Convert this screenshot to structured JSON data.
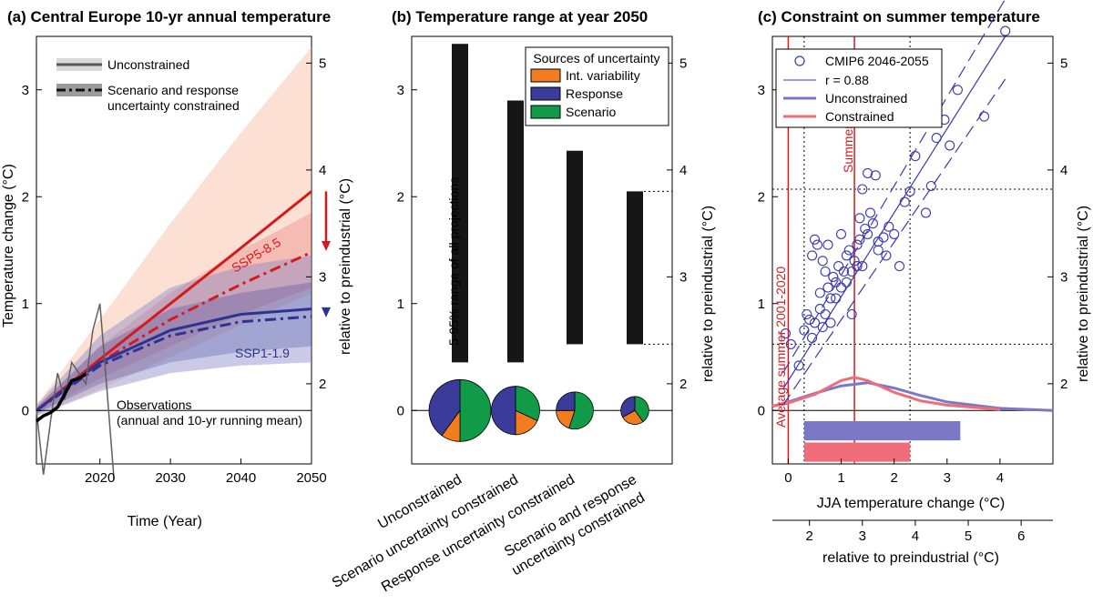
{
  "colors": {
    "red": "#d7191c",
    "red_light": "#f4a582",
    "blue": "#2c3393",
    "blue_light": "#8a8ac8",
    "orange": "#f47c20",
    "response": "#3b3b9c",
    "green": "#119a48",
    "bar": "#161616",
    "obs": "#606060",
    "scatter": "#3a3ab0",
    "pdf_blue": "#7b79c6",
    "pdf_red": "#ee6d78"
  },
  "chart_data": [
    {
      "panel": "a",
      "type": "line",
      "title": "(a) Central Europe 10-yr annual temperature",
      "xlabel": "Time (Year)",
      "ylabel": "Temperature change (°C)",
      "y2label": "relative to preindustrial (°C)",
      "xlim": [
        2011,
        2050
      ],
      "ylim": [
        -0.5,
        3.5
      ],
      "xticks": [
        2020,
        2030,
        2040,
        2050
      ],
      "yticks": [
        0,
        1,
        2,
        3
      ],
      "y2ticks": [
        2,
        3,
        4,
        5
      ],
      "y2_offset": 1.75,
      "legend": {
        "unconstrained": "Unconstrained",
        "constrained_line1": "Scenario and response",
        "constrained_line2": "uncertainty constrained"
      },
      "labels": {
        "ssp585": "SSP5-8.5",
        "ssp119": "SSP1-1.9",
        "obs_line1": "Observations",
        "obs_line2": "(annual and 10-yr running mean)"
      },
      "series": [
        {
          "name": "SSP5-8.5 unconstrained",
          "x": [
            2011,
            2020,
            2030,
            2040,
            2050
          ],
          "values": [
            0.0,
            0.48,
            1.0,
            1.52,
            2.05
          ]
        },
        {
          "name": "SSP5-8.5 constrained",
          "x": [
            2011,
            2020,
            2030,
            2040,
            2050
          ],
          "values": [
            0.0,
            0.45,
            0.85,
            1.18,
            1.48
          ]
        },
        {
          "name": "SSP1-1.9 unconstrained",
          "x": [
            2011,
            2020,
            2030,
            2040,
            2050
          ],
          "values": [
            0.0,
            0.45,
            0.75,
            0.9,
            0.95
          ]
        },
        {
          "name": "SSP1-1.9 constrained",
          "x": [
            2011,
            2020,
            2030,
            2040,
            2050
          ],
          "values": [
            0.0,
            0.42,
            0.7,
            0.83,
            0.88
          ]
        }
      ],
      "bands": [
        {
          "name": "SSP5-8.5 unconstrained range",
          "x": [
            2011,
            2020,
            2030,
            2040,
            2050
          ],
          "low": [
            -0.05,
            0.2,
            0.5,
            0.8,
            1.1
          ],
          "high": [
            0.05,
            0.85,
            1.75,
            2.6,
            3.4
          ]
        },
        {
          "name": "SSP5-8.5 constrained range",
          "x": [
            2011,
            2020,
            2030,
            2040,
            2050
          ],
          "low": [
            -0.03,
            0.3,
            0.6,
            0.9,
            1.15
          ],
          "high": [
            0.03,
            0.6,
            1.1,
            1.5,
            1.85
          ]
        },
        {
          "name": "SSP1-1.9 unconstrained range",
          "x": [
            2011,
            2020,
            2030,
            2040,
            2050
          ],
          "low": [
            -0.05,
            0.18,
            0.35,
            0.42,
            0.45
          ],
          "high": [
            0.05,
            0.7,
            1.15,
            1.35,
            1.45
          ]
        },
        {
          "name": "SSP1-1.9 constrained range",
          "x": [
            2011,
            2020,
            2030,
            2040,
            2050
          ],
          "low": [
            -0.03,
            0.25,
            0.45,
            0.55,
            0.6
          ],
          "high": [
            0.03,
            0.6,
            0.95,
            1.1,
            1.2
          ]
        }
      ],
      "observations_annual": {
        "x": [
          2011,
          2012,
          2013,
          2014,
          2015,
          2016,
          2017,
          2018,
          2019,
          2020,
          2021,
          2022
        ],
        "values": [
          0.0,
          -0.6,
          -0.1,
          0.35,
          0.1,
          0.45,
          0.35,
          0.25,
          0.75,
          1.0,
          0.2,
          -0.65
        ]
      },
      "observations_running_mean": {
        "x": [
          2011,
          2012,
          2013,
          2014,
          2015,
          2016,
          2017,
          2018
        ],
        "values": [
          -0.1,
          -0.05,
          -0.02,
          0.03,
          0.15,
          0.28,
          0.3,
          0.34
        ]
      },
      "arrows": [
        {
          "name": "SSP5-8.5 constraint",
          "from": 2.05,
          "to": 1.5
        },
        {
          "name": "SSP1-1.9 constraint",
          "from": 0.95,
          "to": 0.88
        }
      ]
    },
    {
      "panel": "b",
      "type": "bar",
      "title": "(b) Temperature range at year 2050",
      "ylabel": "",
      "y2label": "relative to preindustrial (°C)",
      "ylim": [
        -0.5,
        3.5
      ],
      "yticks": [
        0,
        1,
        2,
        3
      ],
      "y2ticks": [
        2,
        3,
        4,
        5
      ],
      "y2_offset": 1.75,
      "categories": [
        "Unconstrained",
        "Scenario uncertainty constrained",
        "Response uncertainty constrained",
        "Scenario and response uncertainty constrained"
      ],
      "category_labels_line2": [
        "",
        "",
        "",
        "uncertainty constrained"
      ],
      "category_labels_line1": [
        "Unconstrained",
        "Scenario uncertainty constrained",
        "Response uncertainty constrained",
        "Scenario and response"
      ],
      "bars_low": [
        0.45,
        0.45,
        0.62,
        0.62
      ],
      "bars_high": [
        3.43,
        2.9,
        2.43,
        2.05
      ],
      "bar_annotation": "5-95% range of all projections",
      "legend_title": "Sources of uncertainty",
      "sources": [
        "Int. variability",
        "Response",
        "Scenario"
      ],
      "pies": [
        {
          "slices": [
            0.1,
            0.4,
            0.5
          ],
          "relative_size": 1.0
        },
        {
          "slices": [
            0.18,
            0.5,
            0.32
          ],
          "relative_size": 0.78
        },
        {
          "slices": [
            0.2,
            0.25,
            0.55
          ],
          "relative_size": 0.6
        },
        {
          "slices": [
            0.27,
            0.33,
            0.4
          ],
          "relative_size": 0.45
        }
      ]
    },
    {
      "panel": "c",
      "type": "scatter",
      "title": "(c) Constraint on summer temperature",
      "xlabel": "JJA temperature change (°C)",
      "x2label": "relative to preindustrial (°C)",
      "y2label": "relative to preindustrial (°C)",
      "xlim": [
        -0.3,
        5.0
      ],
      "ylim": [
        -0.5,
        3.5
      ],
      "xticks": [
        0,
        1,
        2,
        3,
        4
      ],
      "yticks": [
        0,
        1,
        2,
        3
      ],
      "x2ticks": [
        2,
        3,
        4,
        5,
        6
      ],
      "x2_offset": 1.6,
      "y2ticks": [
        2,
        3,
        4,
        5
      ],
      "y2_offset": 1.75,
      "legend": [
        "CMIP6 2046-2055",
        "r = 0.88",
        "Unconstrained",
        "Constrained"
      ],
      "vlines": [
        {
          "label": "Average summer 2001-2020",
          "x": 0.0
        },
        {
          "label": "Summer 2022",
          "x": 1.25
        }
      ],
      "dotted_vlines": [
        0.3,
        2.3
      ],
      "dotted_hlines": [
        0.62,
        2.07
      ],
      "regression": {
        "x": [
          -0.1,
          4.1
        ],
        "y": [
          0.2,
          3.5
        ]
      },
      "regression_ci_upper": {
        "x": [
          -0.1,
          4.1
        ],
        "y": [
          0.35,
          3.85
        ]
      },
      "regression_ci_lower": {
        "x": [
          -0.1,
          4.1
        ],
        "y": [
          0.05,
          3.1
        ]
      },
      "points_x": [
        -0.05,
        0.05,
        0.2,
        0.3,
        0.35,
        0.4,
        0.45,
        0.45,
        0.5,
        0.5,
        0.55,
        0.6,
        0.6,
        0.65,
        0.65,
        0.7,
        0.7,
        0.75,
        0.75,
        0.8,
        0.8,
        0.85,
        0.9,
        0.9,
        0.95,
        1.0,
        1.0,
        1.05,
        1.1,
        1.1,
        1.15,
        1.2,
        1.2,
        1.25,
        1.3,
        1.3,
        1.35,
        1.35,
        1.4,
        1.4,
        1.45,
        1.5,
        1.5,
        1.55,
        1.6,
        1.65,
        1.7,
        1.7,
        1.8,
        1.85,
        1.9,
        2.0,
        2.1,
        2.2,
        2.3,
        2.4,
        2.6,
        2.7,
        2.8,
        2.95,
        3.05,
        3.2,
        3.7,
        4.1
      ],
      "points_y": [
        0.72,
        0.62,
        0.42,
        0.75,
        0.9,
        0.85,
        1.45,
        0.68,
        1.6,
        0.82,
        1.55,
        1.1,
        0.95,
        1.4,
        0.78,
        1.3,
        0.9,
        1.15,
        1.55,
        1.05,
        0.82,
        1.25,
        1.2,
        1.05,
        1.35,
        1.15,
        1.65,
        1.3,
        1.2,
        1.45,
        1.5,
        1.3,
        0.9,
        1.4,
        1.55,
        1.35,
        1.8,
        1.6,
        2.07,
        1.35,
        1.7,
        1.65,
        2.22,
        1.85,
        1.75,
        2.2,
        1.5,
        1.58,
        1.62,
        1.45,
        1.72,
        1.65,
        1.35,
        1.95,
        2.05,
        2.38,
        1.85,
        2.1,
        2.55,
        2.72,
        2.48,
        3.0,
        2.75,
        3.55
      ],
      "pdf_unconstrained": {
        "x": [
          -0.3,
          0.0,
          0.5,
          1.0,
          1.5,
          2.0,
          2.5,
          3.0,
          3.5,
          4.0,
          5.0
        ],
        "y": [
          0.04,
          0.08,
          0.16,
          0.23,
          0.26,
          0.21,
          0.14,
          0.08,
          0.05,
          0.02,
          0.0
        ]
      },
      "pdf_constrained": {
        "x": [
          -0.3,
          0.0,
          0.5,
          1.0,
          1.25,
          1.5,
          2.0,
          2.5,
          3.0,
          4.0
        ],
        "y": [
          0.04,
          0.07,
          0.15,
          0.28,
          0.31,
          0.28,
          0.17,
          0.09,
          0.05,
          0.01
        ]
      },
      "range_unconstrained": [
        0.3,
        3.25
      ],
      "range_constrained": [
        0.3,
        2.3
      ]
    }
  ]
}
